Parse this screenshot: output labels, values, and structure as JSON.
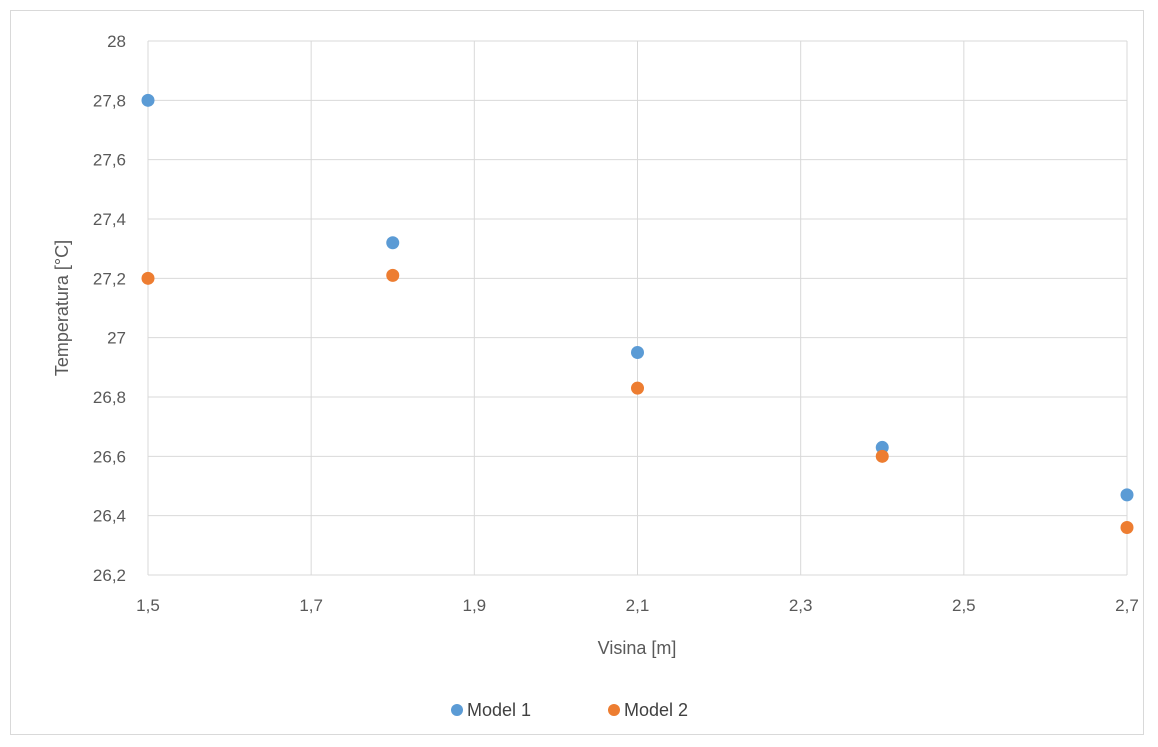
{
  "chart_data": {
    "type": "scatter",
    "xlabel": "Visina [m]",
    "ylabel": "Temperatura [°C]",
    "xlim": [
      1.5,
      2.7
    ],
    "ylim": [
      26.2,
      28
    ],
    "x_ticks": [
      "1,5",
      "1,7",
      "1,9",
      "2,1",
      "2,3",
      "2,5",
      "2,7"
    ],
    "x_tick_values": [
      1.5,
      1.7,
      1.9,
      2.1,
      2.3,
      2.5,
      2.7
    ],
    "y_ticks": [
      "26,2",
      "26,4",
      "26,6",
      "26,8",
      "27",
      "27,2",
      "27,4",
      "27,6",
      "27,8",
      "28"
    ],
    "y_tick_values": [
      26.2,
      26.4,
      26.6,
      26.8,
      27.0,
      27.2,
      27.4,
      27.6,
      27.8,
      28.0
    ],
    "grid": true,
    "legend_position": "bottom",
    "series": [
      {
        "name": "Model 1",
        "color": "#5b9bd5",
        "points": [
          {
            "x": 1.5,
            "y": 27.8
          },
          {
            "x": 1.8,
            "y": 27.32
          },
          {
            "x": 2.1,
            "y": 26.95
          },
          {
            "x": 2.4,
            "y": 26.63
          },
          {
            "x": 2.7,
            "y": 26.47
          }
        ]
      },
      {
        "name": "Model 2",
        "color": "#ed7d31",
        "points": [
          {
            "x": 1.5,
            "y": 27.2
          },
          {
            "x": 1.8,
            "y": 27.21
          },
          {
            "x": 2.1,
            "y": 26.83
          },
          {
            "x": 2.4,
            "y": 26.6
          },
          {
            "x": 2.7,
            "y": 26.36
          }
        ]
      }
    ]
  }
}
